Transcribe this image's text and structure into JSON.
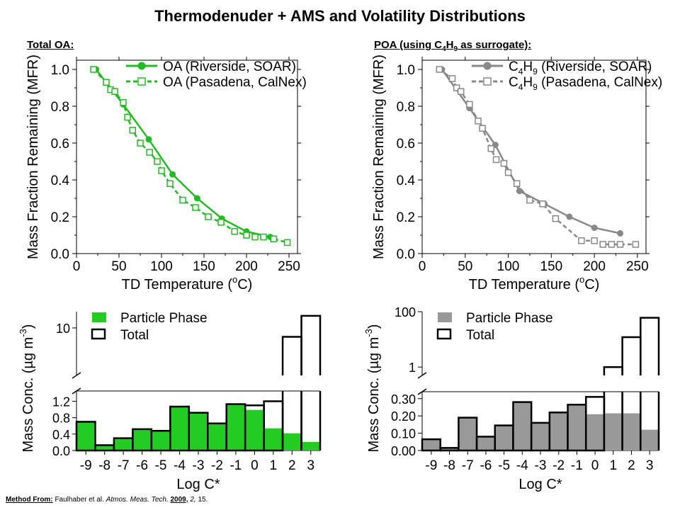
{
  "page": {
    "title": "Thermodenuder + AMS and Volatility Distributions",
    "footer": {
      "method_from": "Method From:",
      "authors": "Faulhaber et al.",
      "journal": "Atmos. Meas. Tech.",
      "year": "2009,",
      "volume": "2,",
      "pages": "15."
    }
  },
  "chart_data": [
    {
      "id": "total-oa-mfr",
      "type": "line",
      "panel_label": "Total OA:",
      "xlabel": "TD Temperature (",
      "xlabel_unit": "C)",
      "xlabel_degree": "o",
      "ylabel": "Mass Fraction Remaining (MFR)",
      "xlim": [
        0,
        260
      ],
      "ylim": [
        0,
        1.05
      ],
      "xticks": [
        0,
        50,
        100,
        150,
        200,
        250
      ],
      "yticks": [
        0.0,
        0.2,
        0.4,
        0.6,
        0.8,
        1.0
      ],
      "ytick_labels": [
        "0.0",
        "0.2",
        "0.4",
        "0.6",
        "0.8",
        "1.0"
      ],
      "color": "#22bb22",
      "legend_position": "top-right",
      "series": [
        {
          "name": "OA (Riverside, SOAR)",
          "style": "solid-filled-circle",
          "x": [
            23,
            55,
            85,
            113,
            142,
            171,
            200,
            228
          ],
          "y": [
            1.0,
            0.81,
            0.62,
            0.43,
            0.3,
            0.19,
            0.12,
            0.09
          ]
        },
        {
          "name": "OA (Pasadena, CalNex)",
          "style": "dashed-open-square",
          "x": [
            20,
            35,
            40,
            45,
            55,
            60,
            66,
            75,
            86,
            95,
            100,
            110,
            125,
            140,
            155,
            170,
            186,
            200,
            210,
            220,
            232,
            248
          ],
          "y": [
            1.0,
            0.93,
            0.89,
            0.88,
            0.82,
            0.74,
            0.67,
            0.6,
            0.55,
            0.5,
            0.45,
            0.38,
            0.29,
            0.25,
            0.2,
            0.17,
            0.12,
            0.1,
            0.09,
            0.09,
            0.08,
            0.06
          ]
        }
      ]
    },
    {
      "id": "poa-mfr",
      "type": "line",
      "panel_label": "POA (using C",
      "panel_label_sub1": "4",
      "panel_label_mid": "H",
      "panel_label_sub2": "9",
      "panel_label_end": " as surrogate):",
      "xlabel": "TD Temperature (",
      "xlabel_unit": "C)",
      "xlabel_degree": "o",
      "ylabel": "Mass Fraction Remaining (MFR)",
      "xlim": [
        0,
        260
      ],
      "ylim": [
        0,
        1.05
      ],
      "xticks": [
        0,
        50,
        100,
        150,
        200,
        250
      ],
      "yticks": [
        0.0,
        0.2,
        0.4,
        0.6,
        0.8,
        1.0
      ],
      "ytick_labels": [
        "0.0",
        "0.2",
        "0.4",
        "0.6",
        "0.8",
        "1.0"
      ],
      "color": "#888888",
      "legend_position": "top-right",
      "series": [
        {
          "name_main": "C",
          "name_sub1": "4",
          "name_mid": "H",
          "name_sub2": "9",
          "name_end": " (Riverside, SOAR)",
          "style": "solid-filled-circle",
          "x": [
            23,
            55,
            85,
            113,
            142,
            171,
            200,
            230
          ],
          "y": [
            1.0,
            0.79,
            0.59,
            0.34,
            0.27,
            0.2,
            0.14,
            0.11
          ]
        },
        {
          "name_main": "C",
          "name_sub1": "4",
          "name_mid": "H",
          "name_sub2": "9",
          "name_end": " (Pasadena, CalNex)",
          "style": "dashed-open-square",
          "x": [
            20,
            35,
            40,
            45,
            55,
            65,
            70,
            80,
            86,
            95,
            100,
            110,
            125,
            140,
            155,
            185,
            200,
            210,
            220,
            230,
            248
          ],
          "y": [
            1.0,
            0.95,
            0.9,
            0.88,
            0.81,
            0.72,
            0.68,
            0.57,
            0.51,
            0.49,
            0.44,
            0.38,
            0.29,
            0.27,
            0.19,
            0.07,
            0.07,
            0.05,
            0.05,
            0.05,
            0.05
          ]
        }
      ]
    },
    {
      "id": "total-oa-volatility",
      "type": "bar",
      "xlabel": "Log C*",
      "ylabel": "Mass Conc. (µg m",
      "ylabel_exp": "-3",
      "ylabel_end": ")",
      "categories": [
        "-9",
        "-8",
        "-7",
        "-6",
        "-5",
        "-4",
        "-3",
        "-2",
        "-1",
        "0",
        "1",
        "2",
        "3"
      ],
      "lower_ylim": [
        0,
        1.45
      ],
      "lower_yticks": [
        0.0,
        0.4,
        0.8,
        1.2
      ],
      "lower_ytick_labels": [
        "0.0",
        "0.4",
        "0.8",
        "1.2"
      ],
      "upper_ylim_log": [
        1.0,
        22
      ],
      "upper_yticks": [
        10
      ],
      "upper_ytick_labels": [
        "10"
      ],
      "fill_color": "#22cc22",
      "legend_position": "top-left",
      "series": [
        {
          "name": "Particle Phase",
          "values": [
            0.7,
            0.13,
            0.3,
            0.52,
            0.48,
            1.07,
            0.92,
            0.66,
            1.13,
            0.99,
            0.54,
            0.42,
            0.21
          ]
        },
        {
          "name": "Total",
          "values": [
            0.7,
            0.13,
            0.3,
            0.52,
            0.48,
            1.07,
            0.92,
            0.66,
            1.13,
            1.1,
            1.2,
            6.5,
            18
          ]
        }
      ]
    },
    {
      "id": "poa-volatility",
      "type": "bar",
      "xlabel": "Log C*",
      "ylabel": "Mass Conc. (µg m",
      "ylabel_exp": "-3",
      "ylabel_end": ")",
      "categories": [
        "-9",
        "-8",
        "-7",
        "-6",
        "-5",
        "-4",
        "-3",
        "-2",
        "-1",
        "0",
        "1",
        "2",
        "3"
      ],
      "lower_ylim": [
        0,
        0.34
      ],
      "lower_yticks": [
        0.0,
        0.1,
        0.2,
        0.3
      ],
      "lower_ytick_labels": [
        "0.00",
        "0.10",
        "0.20",
        "0.30"
      ],
      "upper_ylim_log": [
        0.5,
        100
      ],
      "upper_yticks": [
        1,
        100
      ],
      "upper_ytick_labels": [
        "1",
        "100"
      ],
      "fill_color": "#999999",
      "legend_position": "top-left",
      "series": [
        {
          "name": "Particle Phase",
          "values": [
            0.065,
            0.015,
            0.19,
            0.08,
            0.145,
            0.28,
            0.16,
            0.22,
            0.265,
            0.21,
            0.215,
            0.215,
            0.12
          ]
        },
        {
          "name": "Total",
          "values": [
            0.065,
            0.015,
            0.19,
            0.08,
            0.145,
            0.28,
            0.16,
            0.22,
            0.265,
            0.31,
            1.0,
            12,
            60
          ]
        }
      ]
    }
  ]
}
